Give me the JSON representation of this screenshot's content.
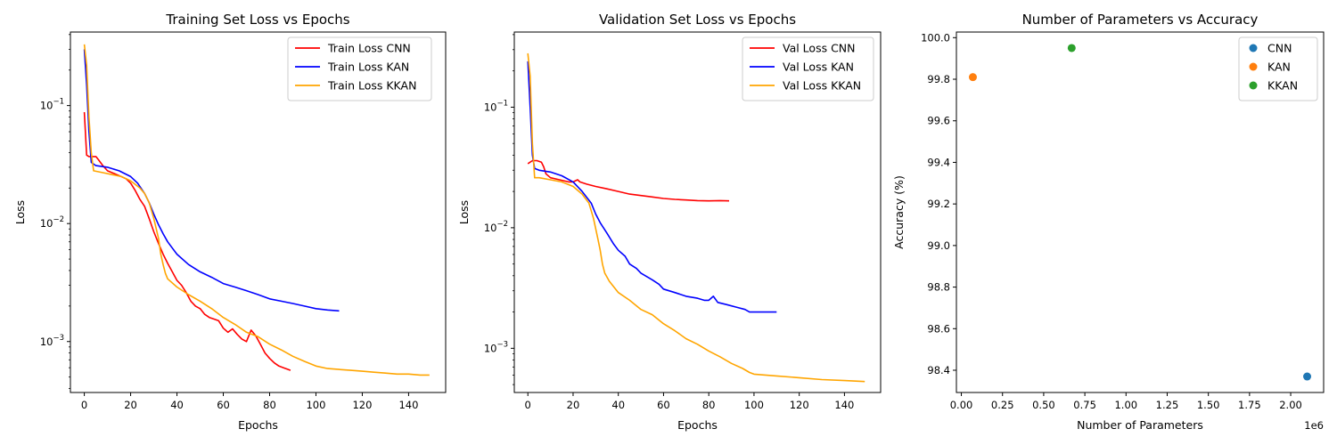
{
  "chart_data": [
    {
      "type": "line",
      "title": "Training Set Loss vs Epochs",
      "xlabel": "Epochs",
      "ylabel": "Loss",
      "xlim": [
        -6,
        156
      ],
      "ylim": [
        0.00037,
        0.42
      ],
      "yscale": "log",
      "x_ticks": [
        0,
        20,
        40,
        60,
        80,
        100,
        120,
        140
      ],
      "y_ticks": [
        {
          "value": 0.001,
          "base": "10",
          "exp": "−3"
        },
        {
          "value": 0.01,
          "base": "10",
          "exp": "−2"
        },
        {
          "value": 0.1,
          "base": "10",
          "exp": "−1"
        }
      ],
      "legend_position": "upper right",
      "series": [
        {
          "name": "Train Loss CNN",
          "color": "#ff0000",
          "points": [
            [
              0,
              0.088
            ],
            [
              1,
              0.038
            ],
            [
              2,
              0.037
            ],
            [
              5,
              0.037
            ],
            [
              6,
              0.035
            ],
            [
              8,
              0.031
            ],
            [
              10,
              0.028
            ],
            [
              14,
              0.026
            ],
            [
              18,
              0.024
            ],
            [
              20,
              0.022
            ],
            [
              22,
              0.019
            ],
            [
              24,
              0.016
            ],
            [
              26,
              0.014
            ],
            [
              28,
              0.011
            ],
            [
              30,
              0.0085
            ],
            [
              32,
              0.0068
            ],
            [
              34,
              0.0055
            ],
            [
              36,
              0.0046
            ],
            [
              38,
              0.0039
            ],
            [
              40,
              0.0033
            ],
            [
              42,
              0.003
            ],
            [
              44,
              0.0026
            ],
            [
              46,
              0.0022
            ],
            [
              48,
              0.002
            ],
            [
              50,
              0.0019
            ],
            [
              52,
              0.0017
            ],
            [
              54,
              0.0016
            ],
            [
              56,
              0.00155
            ],
            [
              58,
              0.0015
            ],
            [
              60,
              0.0013
            ],
            [
              62,
              0.0012
            ],
            [
              64,
              0.00128
            ],
            [
              66,
              0.00115
            ],
            [
              68,
              0.00105
            ],
            [
              70,
              0.001
            ],
            [
              72,
              0.00125
            ],
            [
              74,
              0.00112
            ],
            [
              76,
              0.00095
            ],
            [
              78,
              0.0008
            ],
            [
              80,
              0.00072
            ],
            [
              82,
              0.00066
            ],
            [
              84,
              0.00062
            ],
            [
              86,
              0.0006
            ],
            [
              88,
              0.00058
            ],
            [
              89,
              0.00057
            ]
          ]
        },
        {
          "name": "Train Loss KAN",
          "color": "#0000ff",
          "points": [
            [
              0,
              0.3
            ],
            [
              1,
              0.15
            ],
            [
              2,
              0.06
            ],
            [
              3,
              0.033
            ],
            [
              5,
              0.031
            ],
            [
              10,
              0.03
            ],
            [
              15,
              0.028
            ],
            [
              20,
              0.025
            ],
            [
              23,
              0.022
            ],
            [
              26,
              0.018
            ],
            [
              28,
              0.015
            ],
            [
              30,
              0.012
            ],
            [
              32,
              0.0098
            ],
            [
              34,
              0.0082
            ],
            [
              36,
              0.007
            ],
            [
              38,
              0.0062
            ],
            [
              40,
              0.0055
            ],
            [
              45,
              0.0045
            ],
            [
              50,
              0.0039
            ],
            [
              55,
              0.0035
            ],
            [
              60,
              0.0031
            ],
            [
              65,
              0.0029
            ],
            [
              70,
              0.0027
            ],
            [
              75,
              0.0025
            ],
            [
              80,
              0.0023
            ],
            [
              85,
              0.0022
            ],
            [
              90,
              0.0021
            ],
            [
              95,
              0.002
            ],
            [
              100,
              0.0019
            ],
            [
              105,
              0.00185
            ],
            [
              110,
              0.00182
            ]
          ]
        },
        {
          "name": "Train Loss KKAN",
          "color": "#ffa500",
          "points": [
            [
              0,
              0.33
            ],
            [
              1,
              0.22
            ],
            [
              2,
              0.08
            ],
            [
              3,
              0.04
            ],
            [
              4,
              0.028
            ],
            [
              8,
              0.027
            ],
            [
              12,
              0.026
            ],
            [
              16,
              0.025
            ],
            [
              20,
              0.023
            ],
            [
              24,
              0.02
            ],
            [
              26,
              0.018
            ],
            [
              28,
              0.015
            ],
            [
              30,
              0.011
            ],
            [
              32,
              0.0075
            ],
            [
              33,
              0.0055
            ],
            [
              34,
              0.0045
            ],
            [
              35,
              0.0038
            ],
            [
              36,
              0.0034
            ],
            [
              40,
              0.0029
            ],
            [
              45,
              0.0025
            ],
            [
              50,
              0.0022
            ],
            [
              55,
              0.0019
            ],
            [
              60,
              0.0016
            ],
            [
              65,
              0.0014
            ],
            [
              70,
              0.0012
            ],
            [
              75,
              0.0011
            ],
            [
              80,
              0.00095
            ],
            [
              85,
              0.00085
            ],
            [
              90,
              0.00075
            ],
            [
              95,
              0.00068
            ],
            [
              100,
              0.00062
            ],
            [
              105,
              0.00059
            ],
            [
              110,
              0.00058
            ],
            [
              115,
              0.00057
            ],
            [
              120,
              0.00056
            ],
            [
              125,
              0.00055
            ],
            [
              130,
              0.00054
            ],
            [
              135,
              0.00053
            ],
            [
              140,
              0.00053
            ],
            [
              145,
              0.00052
            ],
            [
              149,
              0.00052
            ]
          ]
        }
      ]
    },
    {
      "type": "line",
      "title": "Validation Set Loss vs Epochs",
      "xlabel": "Epochs",
      "ylabel": "Loss",
      "xlim": [
        -6,
        156
      ],
      "ylim": [
        0.00043,
        0.42
      ],
      "yscale": "log",
      "x_ticks": [
        0,
        20,
        40,
        60,
        80,
        100,
        120,
        140
      ],
      "y_ticks": [
        {
          "value": 0.001,
          "base": "10",
          "exp": "−3"
        },
        {
          "value": 0.01,
          "base": "10",
          "exp": "−2"
        },
        {
          "value": 0.1,
          "base": "10",
          "exp": "−1"
        }
      ],
      "legend_position": "upper right",
      "series": [
        {
          "name": "Val Loss CNN",
          "color": "#ff0000",
          "points": [
            [
              0,
              0.034
            ],
            [
              2,
              0.036
            ],
            [
              4,
              0.036
            ],
            [
              6,
              0.035
            ],
            [
              7,
              0.032
            ],
            [
              8,
              0.028
            ],
            [
              10,
              0.026
            ],
            [
              14,
              0.025
            ],
            [
              18,
              0.024
            ],
            [
              20,
              0.024
            ],
            [
              22,
              0.025
            ],
            [
              23,
              0.024
            ],
            [
              26,
              0.023
            ],
            [
              30,
              0.022
            ],
            [
              35,
              0.021
            ],
            [
              40,
              0.02
            ],
            [
              45,
              0.019
            ],
            [
              50,
              0.0185
            ],
            [
              55,
              0.018
            ],
            [
              60,
              0.0175
            ],
            [
              65,
              0.0172
            ],
            [
              70,
              0.017
            ],
            [
              75,
              0.0168
            ],
            [
              80,
              0.0167
            ],
            [
              85,
              0.0168
            ],
            [
              89,
              0.0167
            ]
          ]
        },
        {
          "name": "Val Loss KAN",
          "color": "#0000ff",
          "points": [
            [
              0,
              0.24
            ],
            [
              1,
              0.1
            ],
            [
              2,
              0.04
            ],
            [
              3,
              0.031
            ],
            [
              5,
              0.03
            ],
            [
              10,
              0.029
            ],
            [
              15,
              0.027
            ],
            [
              20,
              0.024
            ],
            [
              24,
              0.02
            ],
            [
              28,
              0.016
            ],
            [
              30,
              0.013
            ],
            [
              32,
              0.011
            ],
            [
              35,
              0.009
            ],
            [
              38,
              0.0073
            ],
            [
              40,
              0.0065
            ],
            [
              43,
              0.0058
            ],
            [
              45,
              0.005
            ],
            [
              48,
              0.0046
            ],
            [
              50,
              0.0042
            ],
            [
              55,
              0.0037
            ],
            [
              58,
              0.0034
            ],
            [
              60,
              0.0031
            ],
            [
              65,
              0.0029
            ],
            [
              70,
              0.0027
            ],
            [
              75,
              0.0026
            ],
            [
              78,
              0.0025
            ],
            [
              80,
              0.0025
            ],
            [
              82,
              0.0027
            ],
            [
              84,
              0.0024
            ],
            [
              88,
              0.0023
            ],
            [
              92,
              0.0022
            ],
            [
              96,
              0.0021
            ],
            [
              98,
              0.002
            ],
            [
              100,
              0.002
            ],
            [
              105,
              0.002
            ],
            [
              110,
              0.002
            ]
          ]
        },
        {
          "name": "Val Loss KKAN",
          "color": "#ffa500",
          "points": [
            [
              0,
              0.28
            ],
            [
              1,
              0.18
            ],
            [
              2,
              0.05
            ],
            [
              3,
              0.026
            ],
            [
              5,
              0.026
            ],
            [
              10,
              0.025
            ],
            [
              15,
              0.024
            ],
            [
              20,
              0.022
            ],
            [
              24,
              0.019
            ],
            [
              27,
              0.016
            ],
            [
              29,
              0.012
            ],
            [
              31,
              0.008
            ],
            [
              32,
              0.0065
            ],
            [
              33,
              0.005
            ],
            [
              34,
              0.0042
            ],
            [
              36,
              0.0036
            ],
            [
              40,
              0.0029
            ],
            [
              45,
              0.0025
            ],
            [
              50,
              0.0021
            ],
            [
              55,
              0.0019
            ],
            [
              60,
              0.0016
            ],
            [
              65,
              0.0014
            ],
            [
              70,
              0.0012
            ],
            [
              75,
              0.00108
            ],
            [
              80,
              0.00095
            ],
            [
              85,
              0.00085
            ],
            [
              90,
              0.00075
            ],
            [
              95,
              0.00068
            ],
            [
              98,
              0.00063
            ],
            [
              100,
              0.00061
            ],
            [
              110,
              0.00059
            ],
            [
              120,
              0.00057
            ],
            [
              130,
              0.00055
            ],
            [
              140,
              0.00054
            ],
            [
              149,
              0.00053
            ]
          ]
        }
      ]
    },
    {
      "type": "scatter",
      "title": "Number of Parameters vs Accuracy",
      "xlabel": "Number of Parameters",
      "ylabel": "Accuracy (%)",
      "x_offset_label": "1e6",
      "xlim": [
        -30000,
        2200000
      ],
      "ylim": [
        98.293,
        100.027
      ],
      "x_ticks": [
        {
          "value": 0,
          "label": "0.00"
        },
        {
          "value": 250000,
          "label": "0.25"
        },
        {
          "value": 500000,
          "label": "0.50"
        },
        {
          "value": 750000,
          "label": "0.75"
        },
        {
          "value": 1000000,
          "label": "1.00"
        },
        {
          "value": 1250000,
          "label": "1.25"
        },
        {
          "value": 1500000,
          "label": "1.50"
        },
        {
          "value": 1750000,
          "label": "1.75"
        },
        {
          "value": 2000000,
          "label": "2.00"
        }
      ],
      "y_ticks": [
        "98.4",
        "98.6",
        "98.8",
        "99.0",
        "99.2",
        "99.4",
        "99.6",
        "99.8",
        "100.0"
      ],
      "legend_position": "upper right",
      "series": [
        {
          "name": "CNN",
          "color": "#1f77b4",
          "points": [
            [
              2100000,
              98.37
            ]
          ]
        },
        {
          "name": "KAN",
          "color": "#ff7f0e",
          "points": [
            [
              70000,
              99.81
            ]
          ]
        },
        {
          "name": "KKAN",
          "color": "#2ca02c",
          "points": [
            [
              670000,
              99.95
            ]
          ]
        }
      ]
    }
  ]
}
